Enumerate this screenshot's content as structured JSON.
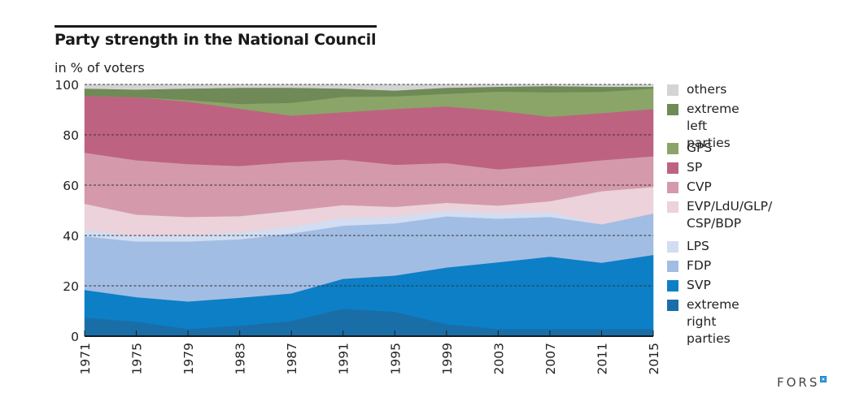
{
  "chart_data": {
    "type": "area",
    "stacked": true,
    "title": "Party strength in the National Council",
    "subtitle": "in % of voters",
    "xlabel": "",
    "ylabel": "in % of voters",
    "ylim": [
      0,
      100
    ],
    "yticks": [
      0,
      20,
      40,
      60,
      80,
      100
    ],
    "grid": "horizontal-dashed",
    "legend_position": "right",
    "x": [
      1971,
      1975,
      1979,
      1983,
      1987,
      1991,
      1995,
      1999,
      2003,
      2007,
      2011,
      2015
    ],
    "series": [
      {
        "name": "extreme right parties",
        "color": "#1a6ea8",
        "values": [
          7.4,
          5.8,
          2.9,
          4.2,
          6.1,
          10.9,
          9.7,
          4.8,
          2.9,
          2.9,
          2.9,
          2.9
        ]
      },
      {
        "name": "SVP",
        "color": "#0c7fc6",
        "values": [
          11.0,
          9.7,
          10.9,
          11.1,
          10.9,
          11.9,
          14.4,
          22.5,
          26.5,
          28.7,
          26.3,
          29.4
        ]
      },
      {
        "name": "FDP",
        "color": "#a2bde3",
        "values": [
          21.3,
          22.1,
          23.8,
          23.2,
          23.8,
          21.1,
          20.7,
          20.3,
          17.3,
          15.8,
          15.3,
          16.5
        ]
      },
      {
        "name": "LPS",
        "color": "#d2ddf2",
        "values": [
          2.6,
          2.3,
          2.6,
          2.8,
          2.7,
          3.0,
          2.7,
          2.3,
          2.2,
          1.9,
          0.0,
          0.0
        ]
      },
      {
        "name": "EVP/LdU/GLP/CSP/BDP",
        "color": "#ecd2da",
        "values": [
          10.3,
          8.4,
          7.2,
          6.4,
          6.3,
          5.2,
          3.9,
          3.1,
          3.0,
          4.3,
          13.1,
          10.5
        ]
      },
      {
        "name": "CVP",
        "color": "#d49aac",
        "values": [
          20.3,
          21.6,
          21.0,
          19.9,
          19.4,
          18.1,
          16.7,
          15.8,
          14.4,
          14.3,
          12.3,
          12.2
        ]
      },
      {
        "name": "SP",
        "color": "#bd6381",
        "values": [
          22.6,
          25.1,
          24.8,
          22.8,
          18.4,
          18.8,
          22.2,
          22.5,
          23.3,
          19.3,
          18.7,
          18.8
        ]
      },
      {
        "name": "GPS",
        "color": "#8aa567",
        "values": [
          0.0,
          0.0,
          0.6,
          1.9,
          5.1,
          6.1,
          5.0,
          5.0,
          7.6,
          9.7,
          8.5,
          8.1
        ]
      },
      {
        "name": "extreme left parties",
        "color": "#6f8a56",
        "values": [
          2.9,
          3.0,
          4.6,
          6.4,
          6.0,
          3.3,
          2.3,
          2.4,
          1.9,
          2.5,
          2.0,
          0.7
        ]
      },
      {
        "name": "others",
        "color": "#d4d4d4",
        "values": [
          1.6,
          2.0,
          1.6,
          1.3,
          1.3,
          1.6,
          2.4,
          1.3,
          0.9,
          0.6,
          0.9,
          0.9
        ]
      }
    ]
  },
  "legend": [
    {
      "label": "others",
      "color": "#d4d4d4"
    },
    {
      "label": "extreme\nleft parties",
      "color": "#6f8a56"
    },
    {
      "label": "GPS",
      "color": "#8aa567"
    },
    {
      "label": "SP",
      "color": "#bd6381"
    },
    {
      "label": "CVP",
      "color": "#d49aac"
    },
    {
      "label": "EVP/LdU/GLP/\nCSP/BDP",
      "color": "#ecd2da"
    },
    {
      "label": "LPS",
      "color": "#d2ddf2"
    },
    {
      "label": "FDP",
      "color": "#a2bde3"
    },
    {
      "label": "SVP",
      "color": "#0c7fc6"
    },
    {
      "label": "extreme\nright parties",
      "color": "#1a6ea8"
    }
  ],
  "logo": {
    "text": "FORS"
  }
}
